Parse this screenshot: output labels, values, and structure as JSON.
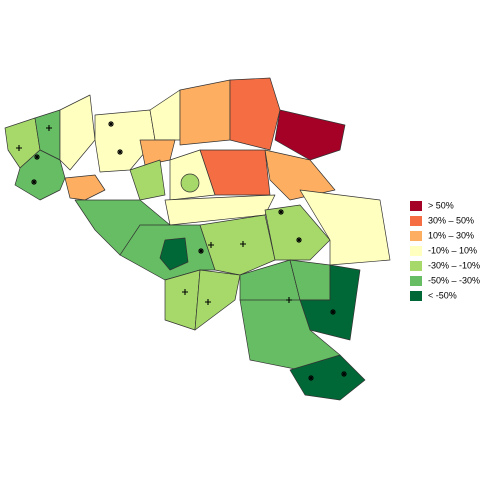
{
  "legend": [
    {
      "label": "> 50%",
      "color": "#a50026"
    },
    {
      "label": "30%  –  50%",
      "color": "#f46d43"
    },
    {
      "label": "10%  –  30%",
      "color": "#fdae61"
    },
    {
      "label": "-10%  –  10%",
      "color": "#ffffbf"
    },
    {
      "label": "-30%  –  -10%",
      "color": "#a6d96a"
    },
    {
      "label": "-50%  –  -30%",
      "color": "#66bd63"
    },
    {
      "label": "< -50%",
      "color": "#006837"
    }
  ]
}
